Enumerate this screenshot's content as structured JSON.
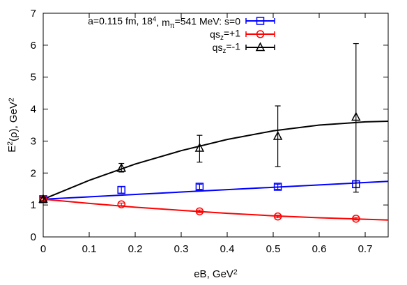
{
  "chart_data": {
    "type": "scatter",
    "xlabel": "eB, GeV²",
    "ylabel": "E²(ρ), GeV²",
    "xlim": [
      0,
      0.75
    ],
    "ylim": [
      0,
      7
    ],
    "x_ticks": [
      0,
      0.1,
      0.2,
      0.3,
      0.4,
      0.5,
      0.6,
      0.7
    ],
    "y_ticks": [
      0,
      1,
      2,
      3,
      4,
      5,
      6,
      7
    ],
    "grid": false,
    "legend_position": "top-right",
    "series": [
      {
        "name": "a=0.115 fm, 18⁴, mπ=541 MeV: s=0",
        "marker": "square",
        "color": "#0000ff",
        "x": [
          0,
          0.17,
          0.34,
          0.51,
          0.68
        ],
        "y": [
          1.18,
          1.47,
          1.57,
          1.57,
          1.65
        ],
        "yerr": [
          0.05,
          0.1,
          0.08,
          0.08,
          0.1
        ],
        "fit": [
          [
            0,
            1.18
          ],
          [
            0.75,
            1.74
          ]
        ]
      },
      {
        "name": "qsz=+1",
        "marker": "circle",
        "color": "#ff0000",
        "x": [
          0,
          0.17,
          0.34,
          0.51,
          0.68
        ],
        "y": [
          1.18,
          1.02,
          0.8,
          0.64,
          0.57
        ],
        "yerr": [
          0.04,
          0.04,
          0.04,
          0.04,
          0.04
        ],
        "fit": [
          [
            0,
            1.18
          ],
          [
            0.1,
            1.05
          ],
          [
            0.2,
            0.93
          ],
          [
            0.3,
            0.83
          ],
          [
            0.4,
            0.74
          ],
          [
            0.5,
            0.66
          ],
          [
            0.6,
            0.6
          ],
          [
            0.75,
            0.53
          ]
        ]
      },
      {
        "name": "qsz=-1",
        "marker": "triangle",
        "color": "#000000",
        "x": [
          0,
          0.17,
          0.34,
          0.51,
          0.68
        ],
        "y": [
          1.18,
          2.15,
          2.78,
          3.15,
          3.75
        ],
        "yerr_low": [
          0.06,
          0.12,
          0.44,
          0.95,
          2.35
        ],
        "yerr_high": [
          0.06,
          0.15,
          0.4,
          0.95,
          2.3
        ],
        "fit": [
          [
            0,
            1.18
          ],
          [
            0.1,
            1.77
          ],
          [
            0.2,
            2.28
          ],
          [
            0.3,
            2.7
          ],
          [
            0.4,
            3.05
          ],
          [
            0.5,
            3.32
          ],
          [
            0.6,
            3.5
          ],
          [
            0.7,
            3.6
          ],
          [
            0.75,
            3.62
          ]
        ]
      }
    ],
    "legend_labels": [
      {
        "series_index": 0,
        "parts": [
          {
            "t": "a=0.115 fm, 18"
          },
          {
            "t": "4",
            "sup": true
          },
          {
            "t": ", m"
          },
          {
            "t": "π",
            "sub": true
          },
          {
            "t": "=541 MeV: s=0"
          }
        ]
      },
      {
        "series_index": 1,
        "parts": [
          {
            "t": "qs"
          },
          {
            "t": "z",
            "sub": true
          },
          {
            "t": "=+1"
          }
        ]
      },
      {
        "series_index": 2,
        "parts": [
          {
            "t": "qs"
          },
          {
            "t": "z",
            "sub": true
          },
          {
            "t": "=-1"
          }
        ]
      }
    ],
    "xlabel_parts": [
      {
        "t": "eB, GeV"
      },
      {
        "t": "2",
        "sup": true
      }
    ],
    "ylabel_parts": [
      {
        "t": "E"
      },
      {
        "t": "2",
        "sup": true
      },
      {
        "t": "(ρ), GeV"
      },
      {
        "t": "2",
        "sup": true
      }
    ]
  }
}
